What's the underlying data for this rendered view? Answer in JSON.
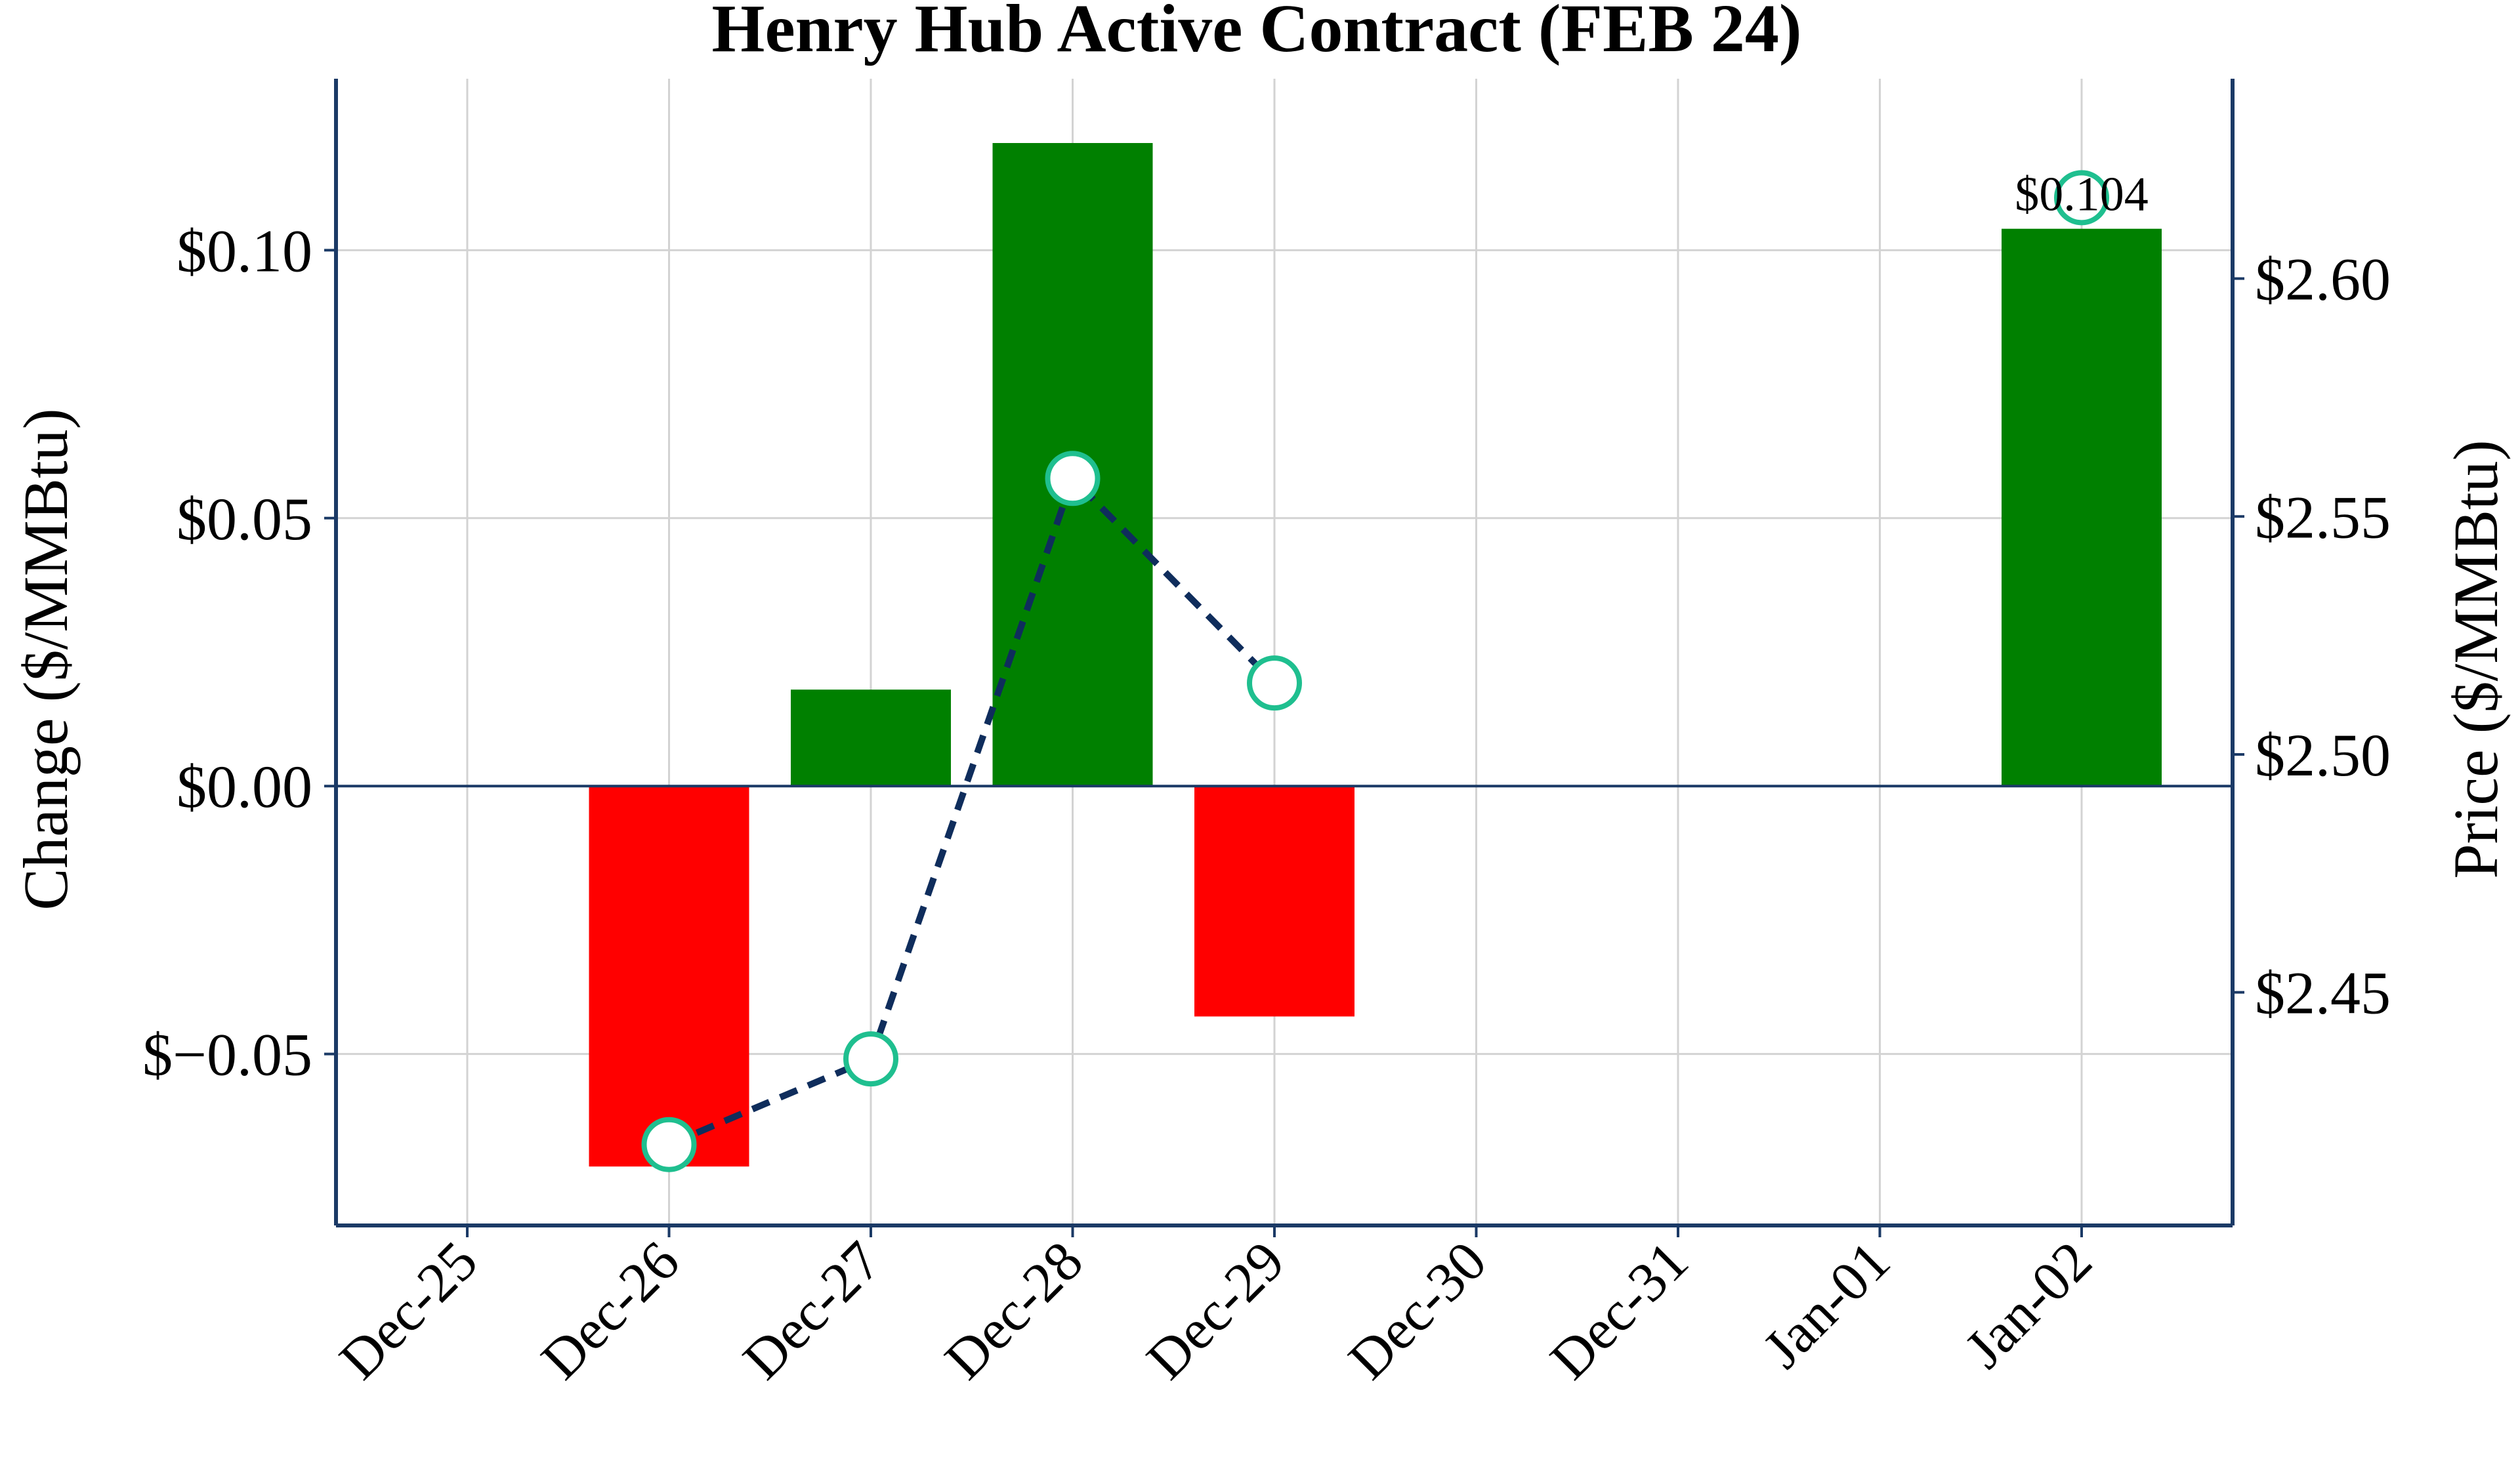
{
  "chart_data": {
    "type": "bar",
    "title": "Henry Hub Active Contract (FEB 24)",
    "categories": [
      "Dec-25",
      "Dec-26",
      "Dec-27",
      "Dec-28",
      "Dec-29",
      "Dec-30",
      "Dec-31",
      "Jan-01",
      "Jan-02"
    ],
    "ylabel": "Change ($/MMBtu)",
    "y2label": "Price ($/MMBtu)",
    "ylim": [
      -0.082,
      0.132
    ],
    "y2lim": [
      2.401,
      2.642
    ],
    "yticks": [
      -0.05,
      0.0,
      0.05,
      0.1
    ],
    "ytick_labels": [
      "$−0.05",
      "$0.00",
      "$0.05",
      "$0.10"
    ],
    "y2ticks": [
      2.45,
      2.5,
      2.55,
      2.6
    ],
    "y2tick_labels": [
      "$2.45",
      "$2.50",
      "$2.55",
      "$2.60"
    ],
    "grid": true,
    "series": [
      {
        "type": "bar",
        "axis": "left",
        "values": [
          null,
          -0.071,
          0.018,
          0.12,
          -0.043,
          null,
          null,
          null,
          0.104
        ]
      },
      {
        "type": "line",
        "axis": "right",
        "values": [
          null,
          2.418,
          2.436,
          2.558,
          2.515,
          null,
          null,
          null,
          2.617
        ]
      }
    ],
    "annotations": [
      {
        "category": "Jan-02",
        "text": "$0.104"
      }
    ],
    "colors": {
      "positive_bar": "#008000",
      "negative_bar": "#ff0000",
      "price_line": "#0f2d5c",
      "marker_edge": "#1fbf8f",
      "axis": "#1b3a66",
      "grid": "#d3d3d3"
    }
  }
}
